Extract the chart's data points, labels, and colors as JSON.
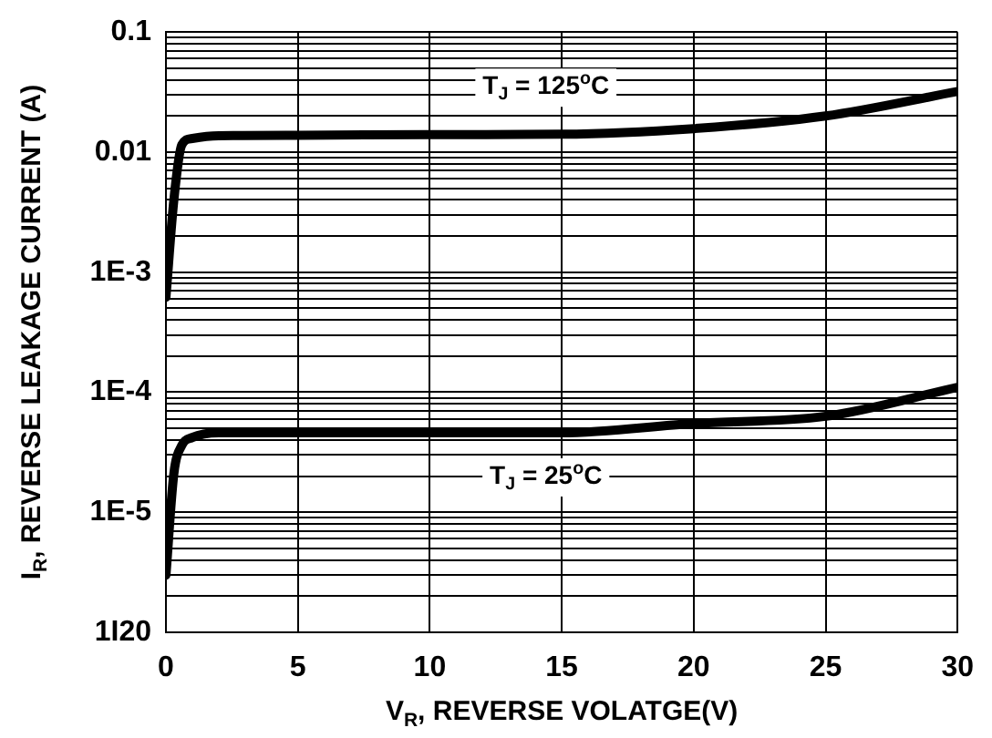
{
  "chart_data": {
    "type": "line",
    "xlabel": "V$_{R}$, REVERSE VOLATGE(V)",
    "ylabel": "I$_{R}$, REVERSE LEAKAGE CURRENT (A)",
    "log": "y",
    "grid": true,
    "marker": "none",
    "line_style": "solid",
    "xlim": [
      0,
      30
    ],
    "xticks": [
      0,
      5,
      10,
      15,
      20,
      25,
      30
    ],
    "ylim": [
      1e-06,
      0.1
    ],
    "yticks": [
      {
        "value": 1e-06,
        "label": "1I20"
      },
      {
        "value": 2e-06,
        "label": null
      },
      {
        "value": 3e-06,
        "label": null
      },
      {
        "value": 4e-06,
        "label": null
      },
      {
        "value": 5e-06,
        "label": null
      },
      {
        "value": 6e-06,
        "label": null
      },
      {
        "value": 7e-06,
        "label": null
      },
      {
        "value": 8e-06,
        "label": null
      },
      {
        "value": 9e-06,
        "label": null
      },
      {
        "value": 1e-05,
        "label": "1E-5"
      },
      {
        "value": 2e-05,
        "label": null
      },
      {
        "value": 3e-05,
        "label": null
      },
      {
        "value": 4e-05,
        "label": null
      },
      {
        "value": 5e-05,
        "label": null
      },
      {
        "value": 6e-05,
        "label": null
      },
      {
        "value": 7e-05,
        "label": null
      },
      {
        "value": 8e-05,
        "label": null
      },
      {
        "value": 9e-05,
        "label": null
      },
      {
        "value": 0.0001,
        "label": "1E-4"
      },
      {
        "value": 0.0002,
        "label": null
      },
      {
        "value": 0.0003,
        "label": null
      },
      {
        "value": 0.0004,
        "label": null
      },
      {
        "value": 0.0005,
        "label": null
      },
      {
        "value": 0.0006,
        "label": null
      },
      {
        "value": 0.0007,
        "label": null
      },
      {
        "value": 0.0008,
        "label": null
      },
      {
        "value": 0.0009,
        "label": null
      },
      {
        "value": 0.001,
        "label": "1E-3"
      },
      {
        "value": 0.002,
        "label": null
      },
      {
        "value": 0.003,
        "label": null
      },
      {
        "value": 0.004,
        "label": null
      },
      {
        "value": 0.005,
        "label": null
      },
      {
        "value": 0.006,
        "label": null
      },
      {
        "value": 0.007,
        "label": null
      },
      {
        "value": 0.008,
        "label": null
      },
      {
        "value": 0.009,
        "label": null
      },
      {
        "value": 0.01,
        "label": "0.01"
      },
      {
        "value": 0.02,
        "label": null
      },
      {
        "value": 0.03,
        "label": null
      },
      {
        "value": 0.04,
        "label": null
      },
      {
        "value": 0.05,
        "label": null
      },
      {
        "value": 0.06,
        "label": null
      },
      {
        "value": 0.07,
        "label": null
      },
      {
        "value": 0.08,
        "label": null
      },
      {
        "value": 0.09,
        "label": null
      },
      {
        "value": 0.1,
        "label": "0.1"
      }
    ],
    "series": [
      {
        "color": "#000000",
        "x": [
          0,
          0.3,
          0.6,
          1,
          2,
          5,
          10,
          15,
          20,
          25,
          30
        ],
        "values": [
          0.00062,
          0.004,
          0.0115,
          0.013,
          0.0137,
          0.0138,
          0.014,
          0.0141,
          0.0157,
          0.02,
          0.032
        ]
      },
      {
        "color": "#000000",
        "x": [
          0,
          0.3,
          0.6,
          1,
          2,
          5,
          10,
          15,
          20,
          25,
          30
        ],
        "values": [
          3e-06,
          2.1e-05,
          3.6e-05,
          4.2e-05,
          4.6e-05,
          4.6e-05,
          4.6e-05,
          4.6e-05,
          5.5e-05,
          6.3e-05,
          0.00011
        ]
      }
    ],
    "annotations": [
      "T$_{J}$ = 125$^{o}$C",
      "T$_{J}$ = 25$^{o}$C"
    ]
  }
}
